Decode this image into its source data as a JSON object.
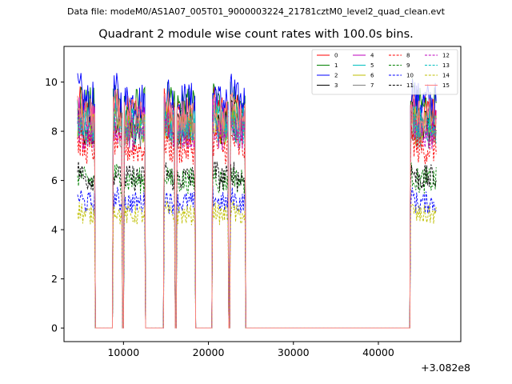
{
  "header": {
    "file_label": "Data file: modeM0/AS1A07_005T01_9000003224_21781cztM0_level2_quad_clean.evt"
  },
  "chart_data": {
    "type": "line",
    "title": "Quadrant 2 module wise count rates with 100.0s bins.",
    "xlabel": "",
    "ylabel": "",
    "x_offset_label": "+3.082e8",
    "xlim": [
      3000,
      49700
    ],
    "ylim": [
      -0.55,
      11.45
    ],
    "x_ticks": [
      10000,
      20000,
      30000,
      40000
    ],
    "y_ticks": [
      0,
      2,
      4,
      6,
      8,
      10
    ],
    "legend_position": "top-right",
    "on_segments": [
      [
        4600,
        6600
      ],
      [
        8800,
        12500
      ],
      [
        14800,
        18400
      ],
      [
        20500,
        22300
      ],
      [
        22600,
        24300
      ],
      [
        43800,
        46800
      ]
    ],
    "dips": [
      [
        9900,
        10000
      ],
      [
        16100,
        16200
      ]
    ],
    "series": [
      {
        "name": "0",
        "color": "#ff0000",
        "dash": "solid",
        "level": 8.7
      },
      {
        "name": "1",
        "color": "#008000",
        "dash": "solid",
        "level": 9.0
      },
      {
        "name": "2",
        "color": "#0000ff",
        "dash": "solid",
        "level": 9.2
      },
      {
        "name": "3",
        "color": "#000000",
        "dash": "solid",
        "level": 8.2
      },
      {
        "name": "4",
        "color": "#bf00bf",
        "dash": "solid",
        "level": 8.4
      },
      {
        "name": "5",
        "color": "#00bfbf",
        "dash": "solid",
        "level": 8.3
      },
      {
        "name": "6",
        "color": "#bfbf00",
        "dash": "solid",
        "level": 8.1
      },
      {
        "name": "7",
        "color": "#808080",
        "dash": "solid",
        "level": 8.0
      },
      {
        "name": "8",
        "color": "#ff0000",
        "dash": "dashed",
        "level": 7.3
      },
      {
        "name": "9",
        "color": "#008000",
        "dash": "dashed",
        "level": 6.0
      },
      {
        "name": "10",
        "color": "#0000ff",
        "dash": "dashed",
        "level": 5.1
      },
      {
        "name": "11",
        "color": "#000000",
        "dash": "dashed",
        "level": 6.1
      },
      {
        "name": "12",
        "color": "#bf00bf",
        "dash": "dashed",
        "level": 7.9
      },
      {
        "name": "13",
        "color": "#00bfbf",
        "dash": "dashed",
        "level": 8.2
      },
      {
        "name": "14",
        "color": "#bfbf00",
        "dash": "dashed",
        "level": 4.6
      },
      {
        "name": "15",
        "color": "#ff7f7f",
        "dash": "solid",
        "level": 8.6
      }
    ]
  }
}
